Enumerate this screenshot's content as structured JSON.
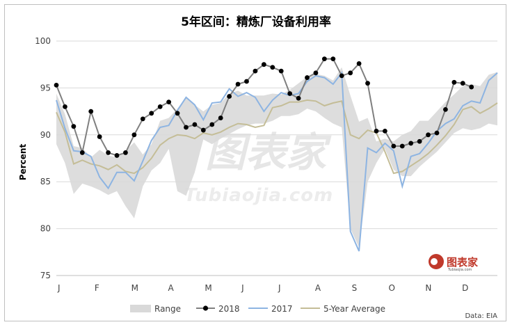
{
  "chart_data": {
    "type": "line",
    "title": "5年区间：精炼厂设备利用率",
    "ylabel": "Percent",
    "xlabel": "",
    "ylim": [
      75,
      100
    ],
    "y_ticks": [
      75,
      80,
      85,
      90,
      95,
      100
    ],
    "x_ticks": [
      "J",
      "F",
      "M",
      "A",
      "M",
      "J",
      "J",
      "A",
      "S",
      "O",
      "N",
      "D"
    ],
    "weeks": 52,
    "grid": "horizontal",
    "legend_position": "bottom",
    "source": "Data: EIA",
    "colors": {
      "range": "#d9d9d9",
      "2018": "#7f7f7f",
      "2018_marker": "#000000",
      "2017": "#8db4e2",
      "avg": "#c4bd97"
    },
    "legend": {
      "range": "Range",
      "y2018": "2018",
      "y2017": "2017",
      "avg": "5-Year Average"
    },
    "watermark": {
      "main": "图表家",
      "sub": "Tubiaojia.com",
      "logo_main": "图表家",
      "logo_sub": "Tubiaojia.com"
    },
    "series": {
      "range_low": [
        89,
        87,
        83.7,
        84.8,
        84.5,
        84.1,
        83.6,
        84,
        82.4,
        81.1,
        84.5,
        86.2,
        87,
        88.5,
        84,
        83.5,
        86,
        89.5,
        89,
        89.6,
        90.1,
        90.6,
        91,
        91.2,
        91.2,
        91.5,
        92,
        92,
        92.2,
        92.8,
        92.5,
        91.8,
        91.2,
        90.8,
        80,
        78,
        85,
        87,
        88.5,
        86.3,
        85.6,
        85.6,
        86.6,
        87.4,
        88.2,
        89.2,
        90.2,
        90.7,
        90.5,
        90.7,
        91.2,
        91
      ],
      "range_high": [
        94.4,
        92.2,
        88.8,
        88.6,
        87.6,
        88.4,
        87.8,
        87.6,
        88.3,
        89.2,
        87.9,
        89,
        91.5,
        91.8,
        92.8,
        94,
        93.2,
        92.5,
        93.2,
        93.4,
        94.4,
        94.7,
        94.2,
        94.2,
        94.2,
        94.4,
        94.3,
        94.8,
        95.5,
        96.2,
        96.5,
        96.3,
        95.8,
        97.2,
        94.2,
        91.4,
        91.8,
        89.3,
        89.6,
        89.3,
        90,
        90.4,
        91.5,
        91.5,
        92.5,
        93.5,
        94.3,
        95.2,
        95.4,
        95.2,
        96.4,
        96.7
      ],
      "y2018": [
        95.3,
        93,
        90.9,
        88.1,
        92.5,
        89.8,
        88.1,
        87.8,
        88.1,
        90,
        91.7,
        92.3,
        93,
        93.5,
        92.3,
        90.8,
        91.1,
        90.5,
        91.1,
        91.8,
        94.1,
        95.4,
        95.7,
        96.8,
        97.5,
        97.2,
        96.8,
        94.4,
        93.9,
        96.1,
        96.6,
        98.1,
        98.1,
        96.3,
        96.6,
        97.6,
        95.5,
        90.4,
        90.4,
        88.8,
        88.8,
        89.1,
        89.3,
        90,
        90.2,
        92.7,
        95.6,
        95.5,
        95.1
      ],
      "y2017": [
        93.7,
        90.7,
        88.3,
        88.2,
        87.7,
        85.5,
        84.3,
        86,
        86,
        85.1,
        87.2,
        89.4,
        90.8,
        91,
        92.6,
        94,
        93.2,
        91.6,
        93.4,
        93.5,
        94.9,
        94.1,
        94.5,
        94,
        92.5,
        93.7,
        94.5,
        94.2,
        94.4,
        95.7,
        96.3,
        96.1,
        95.4,
        96.6,
        79.7,
        77.6,
        88.6,
        88.1,
        89.1,
        88.3,
        84.5,
        87.7,
        88,
        89.1,
        90.4,
        91.2,
        91.7,
        93.1,
        93.6,
        93.4,
        95.8,
        96.6
      ],
      "avg": [
        92.4,
        90.3,
        86.9,
        87.3,
        86.9,
        86.7,
        86.3,
        86.8,
        86.1,
        85.9,
        86.5,
        87.5,
        88.9,
        89.6,
        90,
        89.9,
        89.6,
        90.2,
        90,
        90.3,
        90.8,
        91.2,
        91.1,
        90.8,
        91,
        92.9,
        93.1,
        93.5,
        93.5,
        93.7,
        93.6,
        93.1,
        93.4,
        93.6,
        90,
        89.6,
        90.5,
        90.2,
        88.2,
        85.9,
        86.1,
        86.7,
        87.3,
        88,
        88.9,
        89.9,
        91.1,
        92.7,
        93,
        92.3,
        92.8,
        93.4
      ]
    }
  }
}
